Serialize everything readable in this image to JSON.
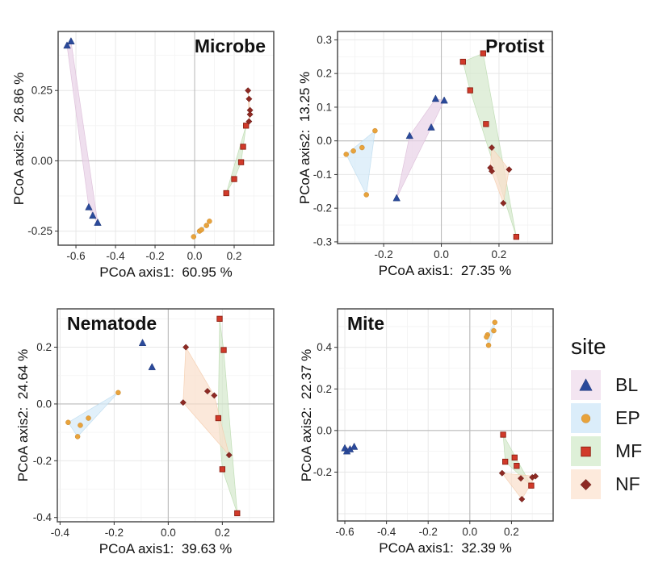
{
  "legend": {
    "title": "site",
    "items": [
      {
        "label": "BL",
        "marker": "triangle-icon",
        "point_color": "#2b4a9b",
        "point_edge": "#1c3575",
        "key_bg": "#f3e5f1",
        "hull_fill": "#e9d3e7",
        "hull_stroke": "#d9b9d6"
      },
      {
        "label": "EP",
        "marker": "circle-icon",
        "point_color": "#e8a33c",
        "point_edge": "#c8862a",
        "key_bg": "#dbedfa",
        "hull_fill": "#d6eaf8",
        "hull_stroke": "#b9d9ee"
      },
      {
        "label": "MF",
        "marker": "square-icon",
        "point_color": "#d13a2a",
        "point_edge": "#8d1f12",
        "key_bg": "#def0d8",
        "hull_fill": "#d6e9cd",
        "hull_stroke": "#b7d8aa"
      },
      {
        "label": "NF",
        "marker": "diamond-icon",
        "point_color": "#8e2a24",
        "point_edge": "#5f1712",
        "key_bg": "#fdeadc",
        "hull_fill": "#fadfcc",
        "hull_stroke": "#f4c9a8"
      }
    ]
  },
  "chart_data": [
    {
      "type": "scatter",
      "title": "Microbe",
      "title_side": "right",
      "xlabel": "PCoA axis1:  60.95 %",
      "ylabel": "PCoA axis2:  26.86 %",
      "xlim": [
        -0.69,
        0.4
      ],
      "ylim": [
        -0.3,
        0.46
      ],
      "xticks": [
        "-0.6",
        "-0.4",
        "-0.2",
        "0.0",
        "0.2"
      ],
      "yticks": [
        "-0.25",
        "0.00",
        "0.25"
      ],
      "grid": true,
      "legend_position": "none",
      "series": [
        {
          "name": "BL",
          "points": [
            [
              -0.645,
              0.41
            ],
            [
              -0.625,
              0.425
            ],
            [
              -0.535,
              -0.165
            ],
            [
              -0.515,
              -0.195
            ],
            [
              -0.49,
              -0.22
            ]
          ]
        },
        {
          "name": "EP",
          "points": [
            [
              -0.005,
              -0.27
            ],
            [
              0.025,
              -0.25
            ],
            [
              0.035,
              -0.245
            ],
            [
              0.06,
              -0.23
            ],
            [
              0.075,
              -0.215
            ]
          ]
        },
        {
          "name": "MF",
          "points": [
            [
              0.16,
              -0.115
            ],
            [
              0.2,
              -0.065
            ],
            [
              0.235,
              -0.005
            ],
            [
              0.245,
              0.05
            ],
            [
              0.26,
              0.125
            ]
          ]
        },
        {
          "name": "NF",
          "points": [
            [
              0.27,
              0.25
            ],
            [
              0.275,
              0.22
            ],
            [
              0.28,
              0.18
            ],
            [
              0.28,
              0.165
            ],
            [
              0.275,
              0.14
            ]
          ]
        }
      ]
    },
    {
      "type": "scatter",
      "title": "Protist",
      "title_side": "right",
      "xlabel": "PCoA axis1:  27.35 %",
      "ylabel": "PCoA axis2:  13.25 %",
      "xlim": [
        -0.36,
        0.385
      ],
      "ylim": [
        -0.305,
        0.325
      ],
      "xticks": [
        "-0.2",
        "0.0",
        "0.2"
      ],
      "yticks": [
        "-0.3",
        "-0.2",
        "-0.1",
        "0.0",
        "0.1",
        "0.2",
        "0.3"
      ],
      "grid": true,
      "legend_position": "none",
      "series": [
        {
          "name": "BL",
          "points": [
            [
              -0.155,
              -0.17
            ],
            [
              -0.11,
              0.015
            ],
            [
              -0.035,
              0.04
            ],
            [
              -0.02,
              0.125
            ],
            [
              0.01,
              0.12
            ]
          ]
        },
        {
          "name": "EP",
          "points": [
            [
              -0.33,
              -0.04
            ],
            [
              -0.305,
              -0.03
            ],
            [
              -0.275,
              -0.02
            ],
            [
              -0.23,
              0.03
            ],
            [
              -0.26,
              -0.16
            ]
          ]
        },
        {
          "name": "MF",
          "points": [
            [
              0.075,
              0.235
            ],
            [
              0.145,
              0.26
            ],
            [
              0.1,
              0.15
            ],
            [
              0.155,
              0.05
            ],
            [
              0.26,
              -0.285
            ]
          ]
        },
        {
          "name": "NF",
          "points": [
            [
              0.175,
              -0.02
            ],
            [
              0.17,
              -0.08
            ],
            [
              0.175,
              -0.09
            ],
            [
              0.235,
              -0.085
            ],
            [
              0.215,
              -0.185
            ]
          ]
        }
      ]
    },
    {
      "type": "scatter",
      "title": "Nematode",
      "title_side": "left",
      "xlabel": "PCoA axis1:  39.63 %",
      "ylabel": "PCoA axis2:  24.64 %",
      "xlim": [
        -0.41,
        0.39
      ],
      "ylim": [
        -0.415,
        0.335
      ],
      "xticks": [
        "-0.4",
        "-0.2",
        "0.0",
        "0.2"
      ],
      "yticks": [
        "-0.4",
        "-0.2",
        "0.0",
        "0.2"
      ],
      "grid": true,
      "legend_position": "none",
      "series": [
        {
          "name": "BL",
          "points": [
            [
              -0.095,
              0.215
            ],
            [
              -0.06,
              0.13
            ]
          ]
        },
        {
          "name": "EP",
          "points": [
            [
              -0.37,
              -0.065
            ],
            [
              -0.335,
              -0.115
            ],
            [
              -0.325,
              -0.075
            ],
            [
              -0.295,
              -0.05
            ],
            [
              -0.185,
              0.04
            ]
          ]
        },
        {
          "name": "MF",
          "points": [
            [
              0.19,
              0.3
            ],
            [
              0.205,
              0.19
            ],
            [
              0.185,
              -0.05
            ],
            [
              0.2,
              -0.23
            ],
            [
              0.255,
              -0.385
            ]
          ]
        },
        {
          "name": "NF",
          "points": [
            [
              0.065,
              0.2
            ],
            [
              0.055,
              0.005
            ],
            [
              0.145,
              0.045
            ],
            [
              0.17,
              0.03
            ],
            [
              0.225,
              -0.18
            ]
          ]
        }
      ]
    },
    {
      "type": "scatter",
      "title": "Mite",
      "title_side": "left",
      "xlabel": "PCoA axis1:  32.39 %",
      "ylabel": "PCoA axis2:  22.37 %",
      "xlim": [
        -0.635,
        0.4
      ],
      "ylim": [
        -0.435,
        0.585
      ],
      "xticks": [
        "-0.6",
        "-0.4",
        "-0.2",
        "0.0",
        "0.2"
      ],
      "yticks": [
        "-0.2",
        "0.0",
        "0.2",
        "0.4"
      ],
      "grid": true,
      "legend_position": "right",
      "series": [
        {
          "name": "BL",
          "points": [
            [
              -0.6,
              -0.085
            ],
            [
              -0.59,
              -0.1
            ],
            [
              -0.575,
              -0.09
            ],
            [
              -0.555,
              -0.078
            ]
          ]
        },
        {
          "name": "EP",
          "points": [
            [
              0.12,
              0.52
            ],
            [
              0.115,
              0.48
            ],
            [
              0.085,
              0.46
            ],
            [
              0.08,
              0.45
            ],
            [
              0.09,
              0.41
            ]
          ]
        },
        {
          "name": "MF",
          "points": [
            [
              0.16,
              -0.02
            ],
            [
              0.17,
              -0.15
            ],
            [
              0.215,
              -0.13
            ],
            [
              0.225,
              -0.17
            ],
            [
              0.295,
              -0.265
            ]
          ]
        },
        {
          "name": "NF",
          "points": [
            [
              0.155,
              -0.205
            ],
            [
              0.245,
              -0.23
            ],
            [
              0.3,
              -0.225
            ],
            [
              0.315,
              -0.22
            ],
            [
              0.25,
              -0.33
            ]
          ]
        }
      ]
    }
  ]
}
